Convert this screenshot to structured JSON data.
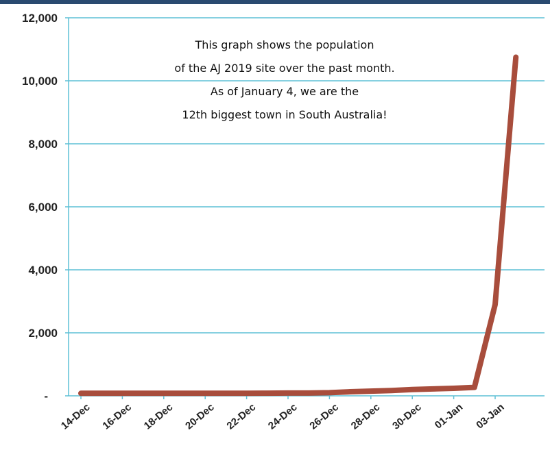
{
  "chart_data": {
    "type": "line",
    "title": "",
    "xlabel": "",
    "ylabel": "",
    "ylim": [
      0,
      12000
    ],
    "yticks": [
      0,
      2000,
      4000,
      6000,
      8000,
      10000,
      12000
    ],
    "ytick_labels": [
      "-",
      "2,000",
      "4,000",
      "6,000",
      "8,000",
      "10,000",
      "12,000"
    ],
    "xtick_labels": [
      "14-Dec",
      "16-Dec",
      "18-Dec",
      "20-Dec",
      "22-Dec",
      "24-Dec",
      "26-Dec",
      "28-Dec",
      "30-Dec",
      "01-Jan",
      "03-Jan"
    ],
    "grid": "horizontal",
    "color": "#a84d3c",
    "series": [
      {
        "x": [
          "14-Dec",
          "15-Dec",
          "16-Dec",
          "17-Dec",
          "18-Dec",
          "19-Dec",
          "20-Dec",
          "21-Dec",
          "22-Dec",
          "23-Dec",
          "24-Dec",
          "25-Dec",
          "26-Dec",
          "27-Dec",
          "28-Dec",
          "29-Dec",
          "30-Dec",
          "31-Dec",
          "01-Jan",
          "02-Jan",
          "03-Jan",
          "04-Jan"
        ],
        "values": [
          80,
          80,
          80,
          80,
          80,
          80,
          80,
          80,
          80,
          85,
          90,
          90,
          100,
          130,
          150,
          170,
          200,
          220,
          240,
          270,
          2900,
          10750
        ]
      }
    ],
    "annotation": [
      "This graph shows the population",
      "of the AJ 2019 site over the past month.",
      "As of January 4, we are the",
      "12th biggest town in South Australia!"
    ]
  }
}
